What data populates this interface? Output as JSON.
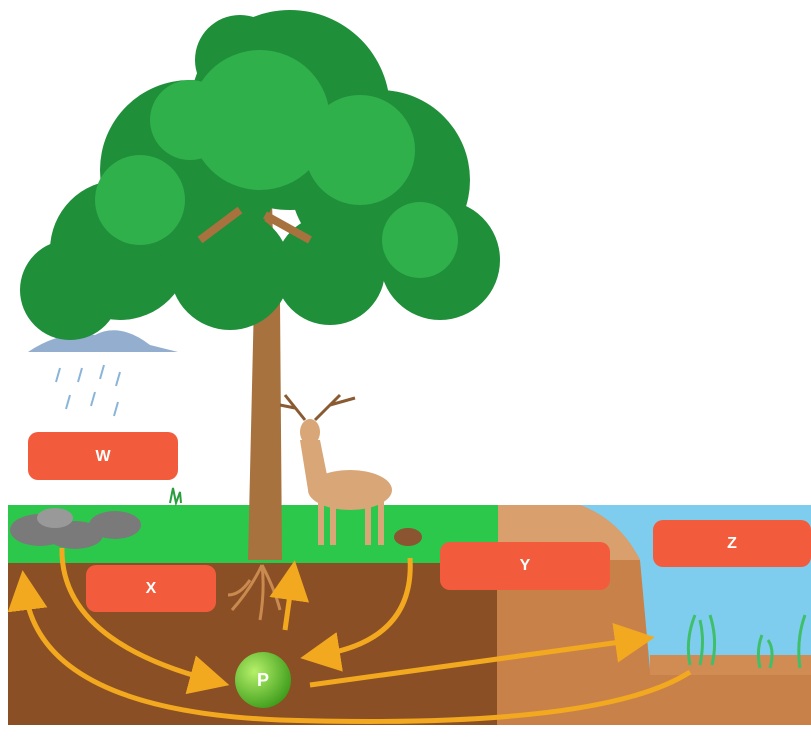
{
  "boxes": [
    "W",
    "X",
    "Y",
    "Z"
  ],
  "nutrient": "P"
}
